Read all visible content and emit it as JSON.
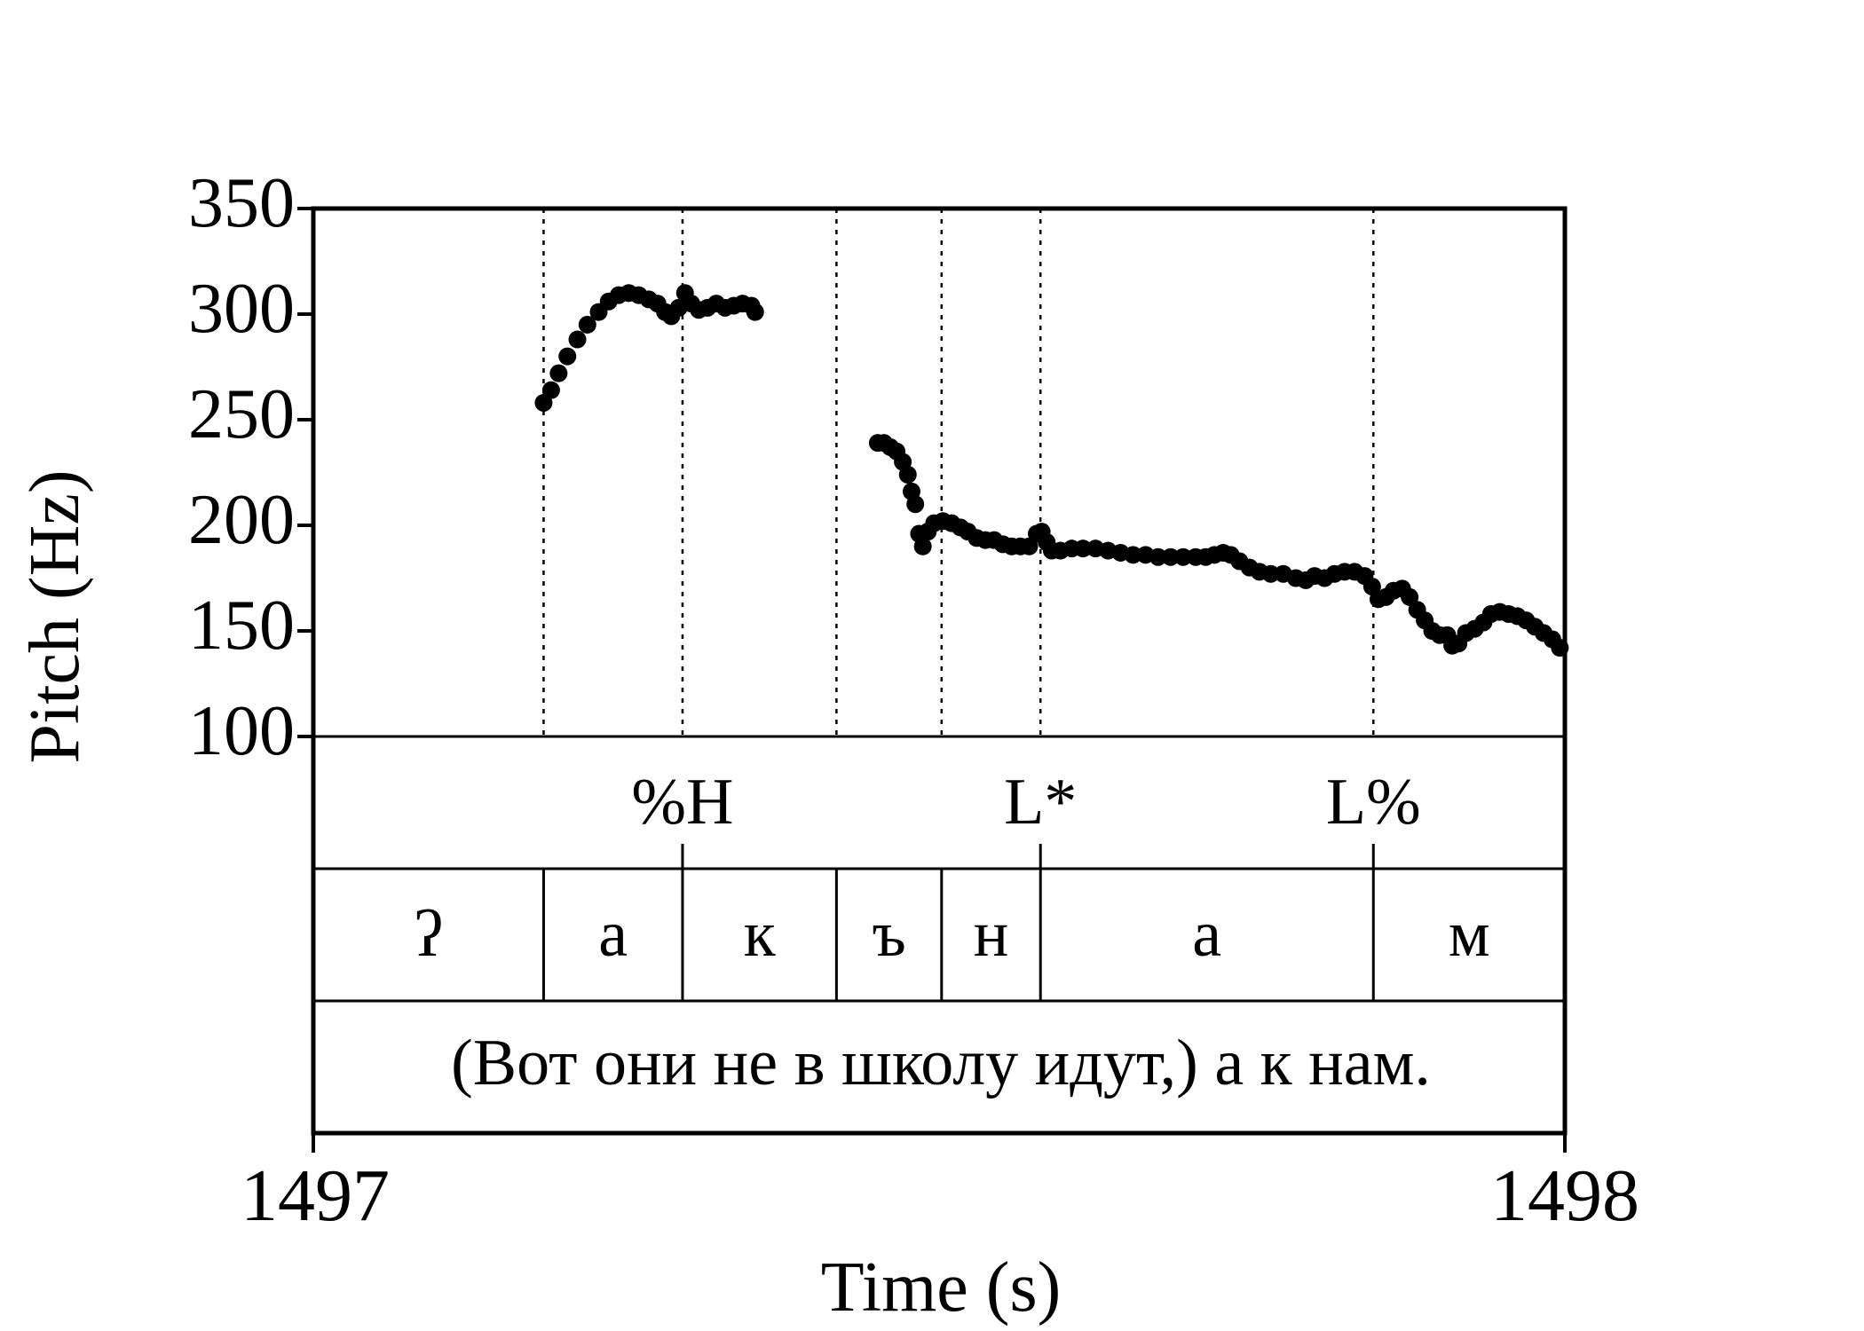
{
  "chart_data": {
    "type": "scatter",
    "xlabel": "Time (s)",
    "ylabel": "Pitch (Hz)",
    "xlim": [
      1497,
      1498
    ],
    "ylim": [
      100,
      350
    ],
    "yticks": [
      "100",
      "150",
      "200",
      "250",
      "300",
      "350"
    ],
    "xticks": [
      "1497",
      "1498"
    ],
    "boundaries": [
      1497.184,
      1497.295,
      1497.418,
      1497.502,
      1497.581,
      1497.847
    ],
    "tones": [
      {
        "label": "%H",
        "time": 1497.295
      },
      {
        "label": "L*",
        "time": 1497.581
      },
      {
        "label": "L%",
        "time": 1497.847
      }
    ],
    "segments": [
      {
        "label": "ʔ",
        "start": 1497.0,
        "end": 1497.184
      },
      {
        "label": "а",
        "start": 1497.184,
        "end": 1497.295
      },
      {
        "label": "к",
        "start": 1497.295,
        "end": 1497.418
      },
      {
        "label": "ъ",
        "start": 1497.418,
        "end": 1497.502
      },
      {
        "label": "н",
        "start": 1497.502,
        "end": 1497.581
      },
      {
        "label": "а",
        "start": 1497.581,
        "end": 1497.847
      },
      {
        "label": "м",
        "start": 1497.847,
        "end": 1498.0
      }
    ],
    "sentence": "(Вот они не в школу идут,) а к нам.",
    "pitch": [
      [
        1497.184,
        258
      ],
      [
        1497.19,
        264
      ],
      [
        1497.196,
        272
      ],
      [
        1497.203,
        280
      ],
      [
        1497.211,
        288
      ],
      [
        1497.219,
        295
      ],
      [
        1497.228,
        301
      ],
      [
        1497.236,
        306
      ],
      [
        1497.244,
        309
      ],
      [
        1497.252,
        310
      ],
      [
        1497.26,
        309
      ],
      [
        1497.268,
        307
      ],
      [
        1497.275,
        305
      ],
      [
        1497.281,
        301
      ],
      [
        1497.286,
        299
      ],
      [
        1497.292,
        303
      ],
      [
        1497.297,
        310
      ],
      [
        1497.302,
        305
      ],
      [
        1497.308,
        302
      ],
      [
        1497.315,
        303
      ],
      [
        1497.322,
        305
      ],
      [
        1497.329,
        303
      ],
      [
        1497.336,
        304
      ],
      [
        1497.343,
        305
      ],
      [
        1497.35,
        304
      ],
      [
        1497.353,
        301
      ],
      [
        1497.451,
        239
      ],
      [
        1497.456,
        239
      ],
      [
        1497.461,
        237
      ],
      [
        1497.466,
        235
      ],
      [
        1497.471,
        230
      ],
      [
        1497.475,
        224
      ],
      [
        1497.478,
        216
      ],
      [
        1497.481,
        210
      ],
      [
        1497.484,
        196
      ],
      [
        1497.487,
        190
      ],
      [
        1497.491,
        197
      ],
      [
        1497.496,
        201
      ],
      [
        1497.503,
        202
      ],
      [
        1497.51,
        201
      ],
      [
        1497.517,
        199
      ],
      [
        1497.523,
        197
      ],
      [
        1497.53,
        194
      ],
      [
        1497.537,
        193
      ],
      [
        1497.544,
        193
      ],
      [
        1497.551,
        191
      ],
      [
        1497.558,
        190
      ],
      [
        1497.565,
        190
      ],
      [
        1497.572,
        190
      ],
      [
        1497.578,
        196
      ],
      [
        1497.582,
        197
      ],
      [
        1497.586,
        192
      ],
      [
        1497.59,
        188
      ],
      [
        1497.597,
        188
      ],
      [
        1497.606,
        189
      ],
      [
        1497.615,
        189
      ],
      [
        1497.625,
        189
      ],
      [
        1497.635,
        188
      ],
      [
        1497.645,
        187
      ],
      [
        1497.655,
        186
      ],
      [
        1497.665,
        186
      ],
      [
        1497.675,
        185
      ],
      [
        1497.685,
        185
      ],
      [
        1497.695,
        185
      ],
      [
        1497.705,
        185
      ],
      [
        1497.713,
        185
      ],
      [
        1497.72,
        186
      ],
      [
        1497.727,
        187
      ],
      [
        1497.733,
        186
      ],
      [
        1497.74,
        183
      ],
      [
        1497.748,
        180
      ],
      [
        1497.756,
        178
      ],
      [
        1497.765,
        177
      ],
      [
        1497.775,
        177
      ],
      [
        1497.785,
        175
      ],
      [
        1497.793,
        174
      ],
      [
        1497.8,
        176
      ],
      [
        1497.808,
        175
      ],
      [
        1497.816,
        177
      ],
      [
        1497.824,
        178
      ],
      [
        1497.832,
        178
      ],
      [
        1497.84,
        176
      ],
      [
        1497.846,
        171
      ],
      [
        1497.851,
        165
      ],
      [
        1497.857,
        166
      ],
      [
        1497.863,
        169
      ],
      [
        1497.87,
        170
      ],
      [
        1497.876,
        166
      ],
      [
        1497.882,
        160
      ],
      [
        1497.888,
        155
      ],
      [
        1497.894,
        150
      ],
      [
        1497.9,
        148
      ],
      [
        1497.906,
        148
      ],
      [
        1497.91,
        143
      ],
      [
        1497.915,
        144
      ],
      [
        1497.921,
        149
      ],
      [
        1497.928,
        151
      ],
      [
        1497.935,
        154
      ],
      [
        1497.941,
        158
      ],
      [
        1497.948,
        159
      ],
      [
        1497.955,
        158
      ],
      [
        1497.962,
        157
      ],
      [
        1497.969,
        155
      ],
      [
        1497.976,
        152
      ],
      [
        1497.983,
        149
      ],
      [
        1497.99,
        146
      ],
      [
        1497.996,
        142
      ]
    ]
  }
}
